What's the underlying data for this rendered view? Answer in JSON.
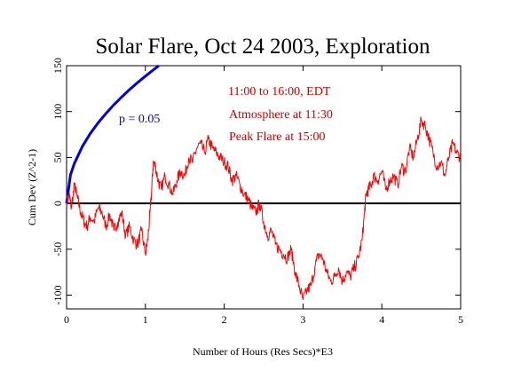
{
  "chart_data": {
    "type": "line",
    "title": "Solar Flare, Oct 24 2003, Exploration",
    "xlabel": "Number of Hours (Res Secs)*E3",
    "ylabel": "Cum Dev (Z^2-1)",
    "xlim": [
      0,
      5
    ],
    "ylim": [
      -115,
      150
    ],
    "x_ticks": [
      "0",
      "1",
      "2",
      "3",
      "4",
      "5"
    ],
    "y_ticks": [
      "-100",
      "-50",
      "0",
      "50",
      "100",
      "150"
    ],
    "annotations": [
      "11:00 to 16:00, EDT",
      "Atmosphere at 11:30",
      "Peak Flare at 15:00"
    ],
    "colors": {
      "data": "#ff0000",
      "significance": "#0000dd",
      "zero_line": "#000000"
    },
    "significance_curve": {
      "label": "p = 0.05",
      "x": [
        0.0,
        0.05,
        0.1,
        0.2,
        0.3,
        0.4,
        0.5,
        0.6,
        0.7,
        0.8,
        0.9,
        1.0,
        1.1,
        1.17
      ],
      "y": [
        0,
        31.0,
        43.8,
        62.0,
        75.9,
        87.7,
        98.0,
        107.4,
        116.0,
        124.0,
        131.5,
        138.6,
        145.4,
        149.9
      ]
    },
    "series": [
      {
        "x": [
          0.0,
          0.03,
          0.06,
          0.1,
          0.14,
          0.18,
          0.22,
          0.26,
          0.3,
          0.35,
          0.4,
          0.45,
          0.5,
          0.55,
          0.6,
          0.65,
          0.7,
          0.75,
          0.8,
          0.85,
          0.9,
          0.95,
          1.0,
          1.03,
          1.06,
          1.08,
          1.1,
          1.13,
          1.16,
          1.2,
          1.25,
          1.3,
          1.35,
          1.4,
          1.45,
          1.5,
          1.55,
          1.6,
          1.65,
          1.7,
          1.75,
          1.8,
          1.85,
          1.9,
          1.95,
          2.0,
          2.05,
          2.1,
          2.15,
          2.2,
          2.25,
          2.3,
          2.35,
          2.4,
          2.45,
          2.5,
          2.55,
          2.6,
          2.65,
          2.7,
          2.75,
          2.8,
          2.85,
          2.9,
          2.95,
          3.0,
          3.05,
          3.1,
          3.15,
          3.2,
          3.25,
          3.3,
          3.35,
          3.4,
          3.45,
          3.5,
          3.55,
          3.6,
          3.65,
          3.7,
          3.75,
          3.78,
          3.8,
          3.83,
          3.86,
          3.9,
          3.95,
          4.0,
          4.05,
          4.1,
          4.15,
          4.2,
          4.25,
          4.3,
          4.35,
          4.4,
          4.45,
          4.5,
          4.55,
          4.6,
          4.65,
          4.7,
          4.75,
          4.8,
          4.85,
          4.9,
          4.95,
          5.0
        ],
        "y": [
          0,
          10,
          -5,
          20,
          5,
          -10,
          -20,
          -25,
          -15,
          -20,
          -5,
          -10,
          -25,
          -12,
          -30,
          -20,
          -10,
          -35,
          -25,
          -40,
          -45,
          -30,
          -55,
          -40,
          -10,
          15,
          45,
          40,
          25,
          15,
          30,
          20,
          10,
          25,
          35,
          30,
          50,
          45,
          60,
          65,
          55,
          70,
          60,
          55,
          50,
          45,
          40,
          25,
          30,
          20,
          10,
          5,
          -5,
          -10,
          0,
          -20,
          -35,
          -30,
          -45,
          -50,
          -55,
          -60,
          -50,
          -75,
          -90,
          -105,
          -95,
          -90,
          -70,
          -55,
          -60,
          -75,
          -85,
          -80,
          -70,
          -85,
          -75,
          -80,
          -70,
          -60,
          -40,
          -10,
          10,
          15,
          20,
          30,
          25,
          35,
          15,
          25,
          30,
          20,
          40,
          35,
          60,
          50,
          70,
          90,
          85,
          70,
          55,
          40,
          45,
          30,
          50,
          65,
          55,
          50
        ]
      }
    ]
  }
}
